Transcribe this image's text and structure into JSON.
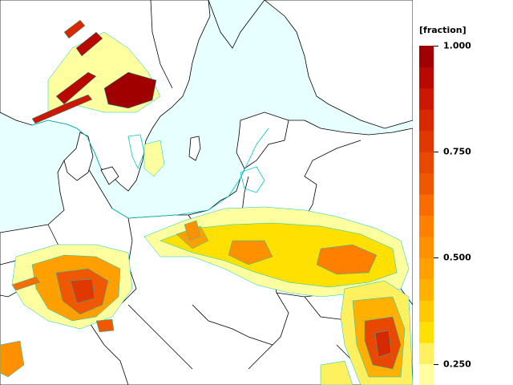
{
  "legend": {
    "unit": "[fraction]",
    "ticks": [
      {
        "label": "1.000",
        "value": 1.0
      },
      {
        "label": "0.750",
        "value": 0.75
      },
      {
        "label": "0.500",
        "value": 0.5
      },
      {
        "label": "0.250",
        "value": 0.25
      }
    ],
    "bins": [
      {
        "from": 0.2,
        "to": 0.25,
        "color": "#ffffa0"
      },
      {
        "from": 0.25,
        "to": 0.3,
        "color": "#fff060"
      },
      {
        "from": 0.3,
        "to": 0.35,
        "color": "#ffe000"
      },
      {
        "from": 0.35,
        "to": 0.4,
        "color": "#ffc800"
      },
      {
        "from": 0.4,
        "to": 0.45,
        "color": "#ffb000"
      },
      {
        "from": 0.45,
        "to": 0.5,
        "color": "#ffa000"
      },
      {
        "from": 0.5,
        "to": 0.55,
        "color": "#ff9000"
      },
      {
        "from": 0.55,
        "to": 0.6,
        "color": "#ff8000"
      },
      {
        "from": 0.6,
        "to": 0.65,
        "color": "#f86c00"
      },
      {
        "from": 0.65,
        "to": 0.7,
        "color": "#f05800"
      },
      {
        "from": 0.7,
        "to": 0.75,
        "color": "#e84800"
      },
      {
        "from": 0.75,
        "to": 0.8,
        "color": "#e03800"
      },
      {
        "from": 0.8,
        "to": 0.85,
        "color": "#d82800"
      },
      {
        "from": 0.85,
        "to": 0.9,
        "color": "#cc1800"
      },
      {
        "from": 0.9,
        "to": 0.95,
        "color": "#b80800"
      },
      {
        "from": 0.95,
        "to": 1.0,
        "color": "#a00000"
      }
    ]
  },
  "map": {
    "sea_color": "#e8ffff",
    "land_color": "#ffffff",
    "outline_color": "#000000",
    "coast_contour_color": "#00c8c8"
  }
}
